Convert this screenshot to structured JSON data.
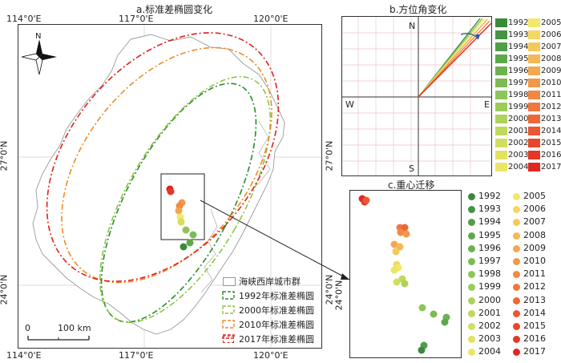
{
  "panel_a": {
    "title": "a.标准差椭圆变化",
    "top_lons": [
      "114°0'E",
      "117°0'E",
      "120°0'E"
    ],
    "bottom_lons": [
      "114°0'E",
      "117°0'E",
      "120°0'E"
    ],
    "left_lats": [
      "27°0'N",
      "24°0'N"
    ],
    "right_lats": [
      "27°0'N",
      "24°0'N"
    ],
    "north_label": "N",
    "scale": {
      "zero": "0",
      "dist": "100 km"
    },
    "legend": [
      {
        "label": "海峡西岸城市群",
        "color": "#999999",
        "kind": "box"
      },
      {
        "label": "1992年标准差椭圆",
        "color": "#2e8b2e",
        "kind": "dash"
      },
      {
        "label": "2000年标准差椭圆",
        "color": "#8cc63f",
        "kind": "dash"
      },
      {
        "label": "2010年标准差椭圆",
        "color": "#f08a24",
        "kind": "dash"
      },
      {
        "label": "2017年标准差椭圆",
        "color": "#e0201b",
        "kind": "dash"
      }
    ]
  },
  "panel_b": {
    "title": "b.方位角变化",
    "dirs": {
      "n": "N",
      "s": "S",
      "w": "W",
      "e": "E"
    },
    "legend_left": [
      {
        "year": "1992",
        "color": "#3a8a3a"
      },
      {
        "year": "1993",
        "color": "#449444"
      },
      {
        "year": "1994",
        "color": "#509e48"
      },
      {
        "year": "1995",
        "color": "#5ea84c"
      },
      {
        "year": "1996",
        "color": "#6cb250"
      },
      {
        "year": "1997",
        "color": "#7cbc54"
      },
      {
        "year": "1998",
        "color": "#8cc658"
      },
      {
        "year": "1999",
        "color": "#9ccc58"
      },
      {
        "year": "2000",
        "color": "#aed25a"
      },
      {
        "year": "2001",
        "color": "#c0d85c"
      },
      {
        "year": "2002",
        "color": "#d2de5e"
      },
      {
        "year": "2003",
        "color": "#e2e260"
      },
      {
        "year": "2004",
        "color": "#ece664"
      }
    ],
    "legend_right": [
      {
        "year": "2005",
        "color": "#f3e868"
      },
      {
        "year": "2006",
        "color": "#f5d862"
      },
      {
        "year": "2007",
        "color": "#f5c85c"
      },
      {
        "year": "2008",
        "color": "#f4b856"
      },
      {
        "year": "2009",
        "color": "#f3a850"
      },
      {
        "year": "2010",
        "color": "#f2984a"
      },
      {
        "year": "2011",
        "color": "#f18844"
      },
      {
        "year": "2012",
        "color": "#ef783e"
      },
      {
        "year": "2013",
        "color": "#ec6838"
      },
      {
        "year": "2014",
        "color": "#e95832"
      },
      {
        "year": "2015",
        "color": "#e6482c"
      },
      {
        "year": "2016",
        "color": "#e33826"
      },
      {
        "year": "2017",
        "color": "#df2820"
      }
    ]
  },
  "panel_c": {
    "title": "c.重心迁移",
    "lat_label": "24°0'N",
    "legend_left": [
      {
        "year": "1992",
        "color": "#3a8a3a"
      },
      {
        "year": "1993",
        "color": "#449444"
      },
      {
        "year": "1994",
        "color": "#509e48"
      },
      {
        "year": "1995",
        "color": "#5ea84c"
      },
      {
        "year": "1996",
        "color": "#6cb250"
      },
      {
        "year": "1997",
        "color": "#7cbc54"
      },
      {
        "year": "1998",
        "color": "#8cc658"
      },
      {
        "year": "1999",
        "color": "#9ccc58"
      },
      {
        "year": "2000",
        "color": "#aed25a"
      },
      {
        "year": "2001",
        "color": "#c0d85c"
      },
      {
        "year": "2002",
        "color": "#d2de5e"
      },
      {
        "year": "2003",
        "color": "#e2e260"
      },
      {
        "year": "2004",
        "color": "#ece664"
      }
    ],
    "legend_right": [
      {
        "year": "2005",
        "color": "#f3e868"
      },
      {
        "year": "2006",
        "color": "#f5d862"
      },
      {
        "year": "2007",
        "color": "#f5c85c"
      },
      {
        "year": "2008",
        "color": "#f4b856"
      },
      {
        "year": "2009",
        "color": "#f3a850"
      },
      {
        "year": "2010",
        "color": "#f2984a"
      },
      {
        "year": "2011",
        "color": "#f18844"
      },
      {
        "year": "2012",
        "color": "#ef783e"
      },
      {
        "year": "2013",
        "color": "#ec6838"
      },
      {
        "year": "2014",
        "color": "#e95832"
      },
      {
        "year": "2015",
        "color": "#e6482c"
      },
      {
        "year": "2016",
        "color": "#e33826"
      },
      {
        "year": "2017",
        "color": "#df2820"
      }
    ]
  }
}
